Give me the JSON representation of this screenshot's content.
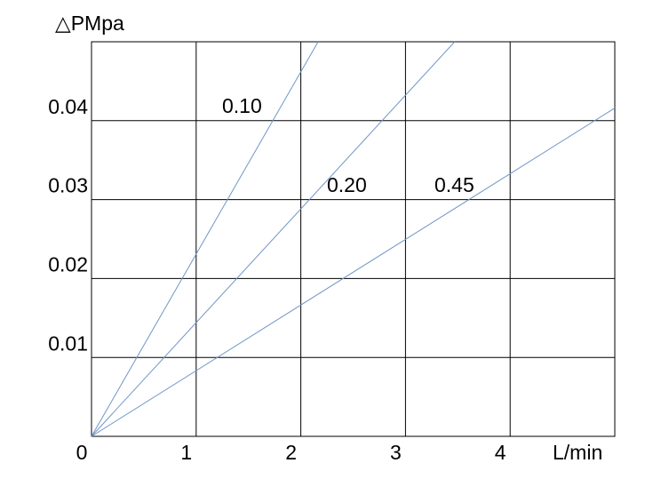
{
  "chart_data": {
    "type": "line",
    "y_label": "△PMpa",
    "x_label": "L/min",
    "xlim": [
      0,
      5
    ],
    "xticks": [
      0,
      1,
      2,
      3,
      4
    ],
    "ylim": [
      0,
      0.05
    ],
    "yticks": [
      0.01,
      0.02,
      0.03,
      0.04
    ],
    "grid": true,
    "series": [
      {
        "name": "0.10",
        "color": "#6f96c8",
        "x": [
          0,
          2.165
        ],
        "values": [
          0,
          0.05
        ]
      },
      {
        "name": "0.20",
        "color": "#6f96c8",
        "x": [
          0,
          3.47
        ],
        "values": [
          0,
          0.05
        ]
      },
      {
        "name": "0.45",
        "color": "#6f96c8",
        "x": [
          0,
          5
        ],
        "values": [
          0,
          0.0416
        ]
      }
    ]
  }
}
